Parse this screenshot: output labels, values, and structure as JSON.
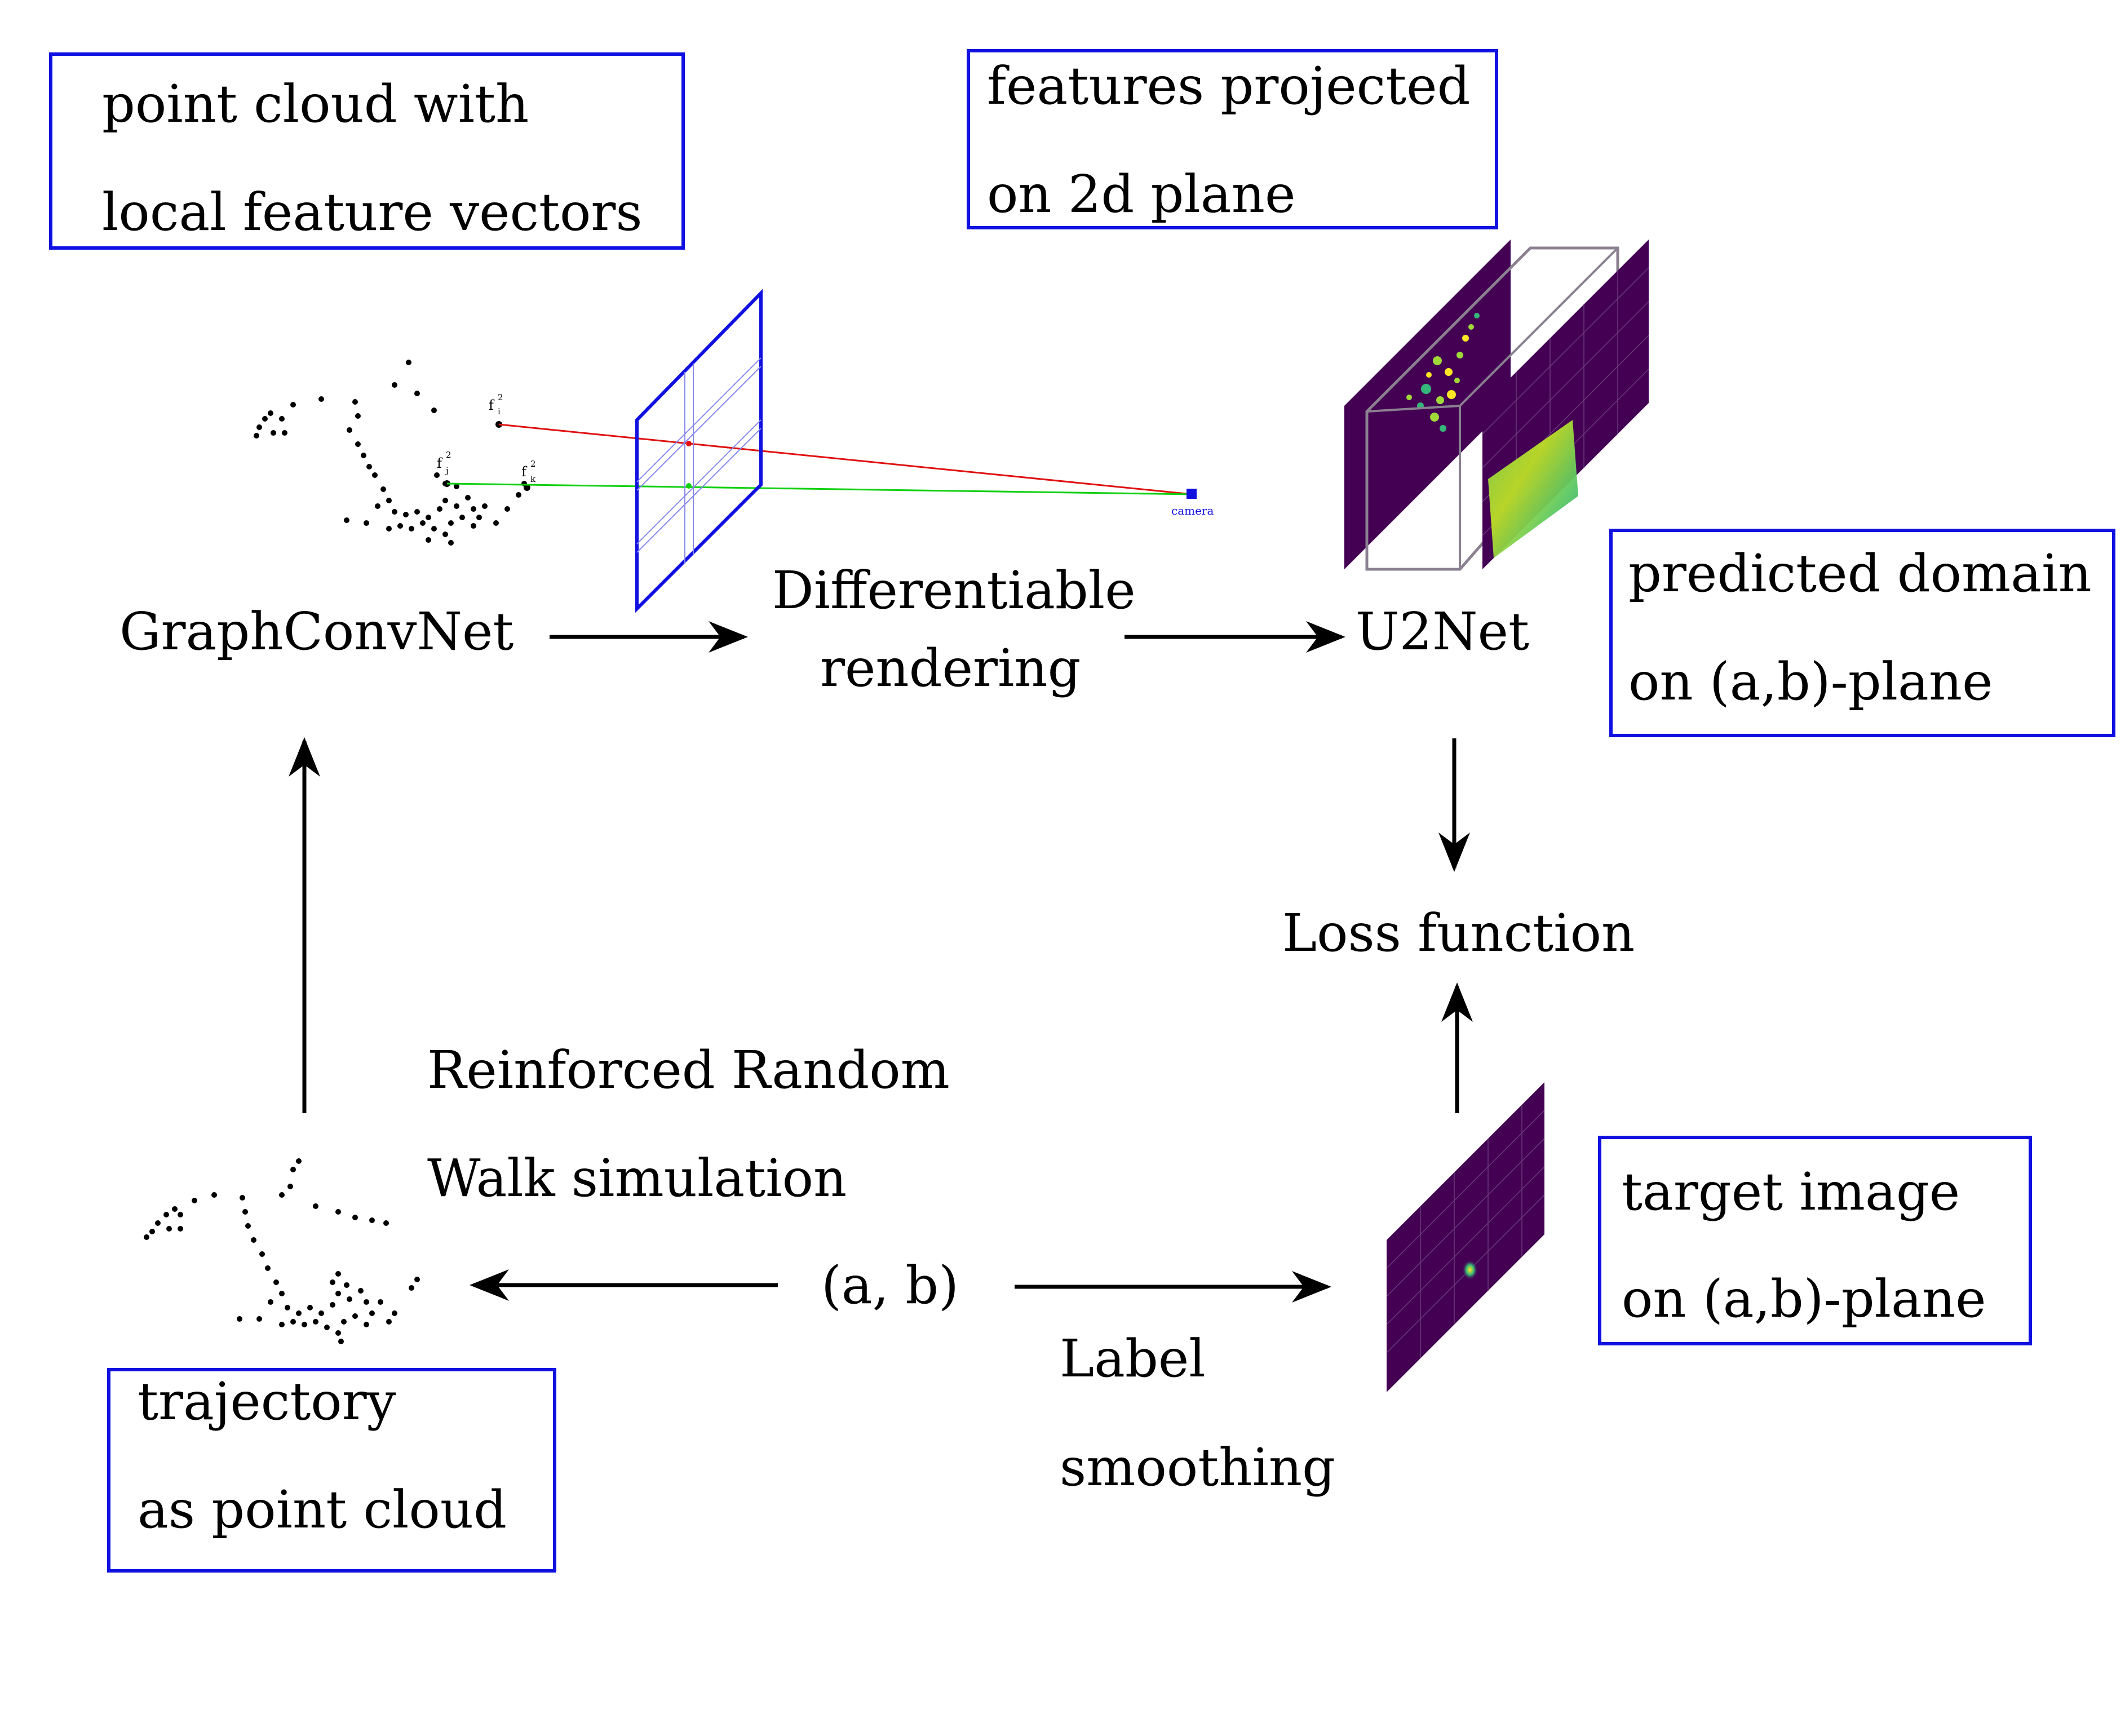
{
  "boxes": {
    "point_cloud_box": {
      "line1": "point  cloud  with",
      "line2": "local  feature  vectors"
    },
    "features_projected_box": {
      "line1": "features  projected",
      "line2": "on  2d  plane"
    },
    "predicted_domain_box": {
      "line1": "predicted  domain",
      "line2": "on  (a,b)-plane"
    },
    "target_image_box": {
      "line1": "target  image",
      "line2": "on  (a,b)-plane"
    },
    "trajectory_box": {
      "line1": "trajectory",
      "line2": "as  point  cloud"
    }
  },
  "nodes": {
    "graphconvnet": "GraphConvNet",
    "diff_rendering_1": "Differentiable",
    "diff_rendering_2": "rendering",
    "u2net": "U2Net",
    "loss_function": "Loss  function",
    "rrw_1": "Reinforced  Random",
    "rrw_2": "Walk  simulation",
    "ab": "(a,  b)",
    "label_smoothing_1": "Label",
    "label_smoothing_2": "smoothing"
  },
  "point_labels": {
    "fi": "f",
    "fi_sup": "2",
    "fi_sub": "i",
    "fj": "f",
    "fj_sup": "2",
    "fj_sub": "j",
    "fk": "f",
    "fk_sup": "2",
    "fk_sub": "k",
    "camera": "camera"
  },
  "colors": {
    "box_border": "#1010e0",
    "red_ray": "#e01010",
    "green_ray": "#10d010",
    "plane_blue": "#1010e0",
    "viridis_bg": "#440154",
    "viridis_green": "#35b779",
    "viridis_yellow": "#fde725"
  }
}
